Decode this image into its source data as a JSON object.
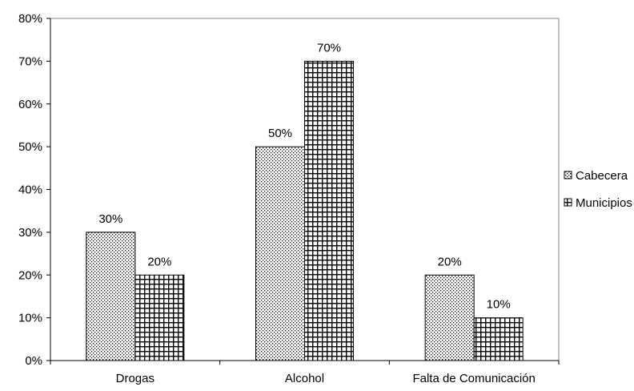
{
  "chart_data": {
    "type": "bar",
    "categories": [
      "Drogas",
      "Alcohol",
      "Falta de Comunicación"
    ],
    "series": [
      {
        "name": "Cabecera",
        "values": [
          30,
          50,
          20
        ],
        "labels": [
          "30%",
          "50%",
          "20%"
        ],
        "pattern": "dots"
      },
      {
        "name": "Municipios",
        "values": [
          20,
          70,
          10
        ],
        "labels": [
          "20%",
          "70%",
          "10%"
        ],
        "pattern": "grid"
      }
    ],
    "yticks": [
      {
        "value": 0,
        "label": "0%"
      },
      {
        "value": 10,
        "label": "10%"
      },
      {
        "value": 20,
        "label": "20%"
      },
      {
        "value": 30,
        "label": "30%"
      },
      {
        "value": 40,
        "label": "40%"
      },
      {
        "value": 50,
        "label": "50%"
      },
      {
        "value": 60,
        "label": "60%"
      },
      {
        "value": 70,
        "label": "70%"
      },
      {
        "value": 80,
        "label": "80%"
      }
    ],
    "ylim": [
      0,
      80
    ],
    "grid": false,
    "legend_position": "right",
    "colors": {
      "axis": "#000000",
      "plot_border": "#808080",
      "bar_fill": "#ffffff",
      "bar_stroke": "#000000"
    }
  }
}
